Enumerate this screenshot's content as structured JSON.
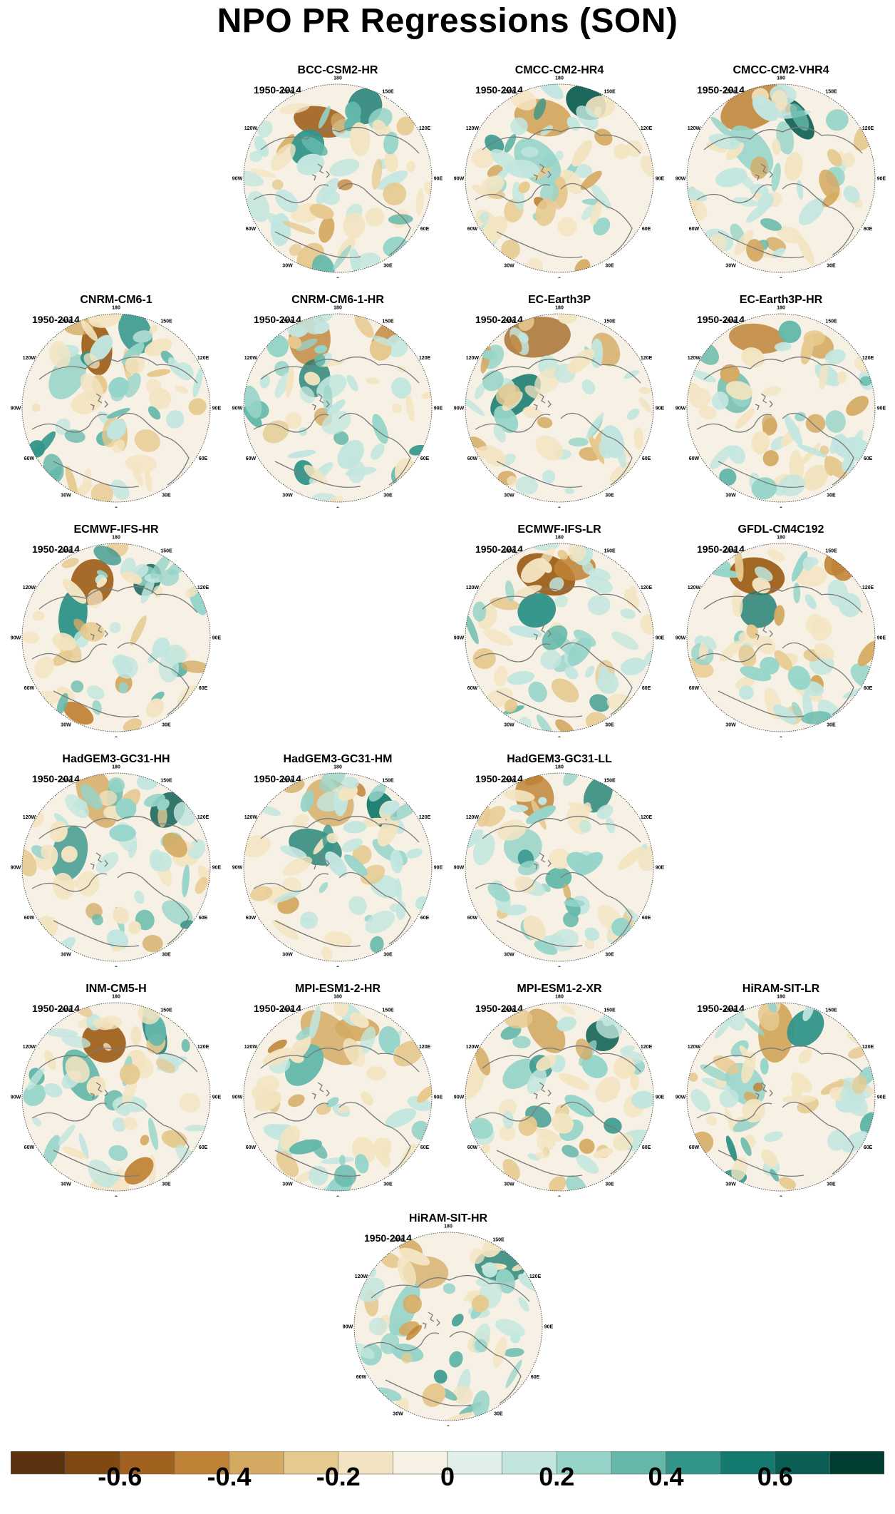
{
  "title": "NPO PR Regressions (SON)",
  "period": "1950-2014",
  "longitude_labels": [
    "180",
    "150E",
    "120E",
    "90E",
    "60E",
    "30E",
    "0",
    "30W",
    "60W",
    "90W",
    "120W",
    "150W"
  ],
  "panels": [
    {
      "model": "BCC-CSM2-HR",
      "row": 0,
      "col": 1
    },
    {
      "model": "CMCC-CM2-HR4",
      "row": 0,
      "col": 2
    },
    {
      "model": "CMCC-CM2-VHR4",
      "row": 0,
      "col": 3
    },
    {
      "model": "CNRM-CM6-1",
      "row": 1,
      "col": 0
    },
    {
      "model": "CNRM-CM6-1-HR",
      "row": 1,
      "col": 1
    },
    {
      "model": "EC-Earth3P",
      "row": 1,
      "col": 2
    },
    {
      "model": "EC-Earth3P-HR",
      "row": 1,
      "col": 3
    },
    {
      "model": "ECMWF-IFS-HR",
      "row": 2,
      "col": 0
    },
    {
      "model": "ECMWF-IFS-LR",
      "row": 2,
      "col": 2
    },
    {
      "model": "GFDL-CM4C192",
      "row": 2,
      "col": 3
    },
    {
      "model": "HadGEM3-GC31-HH",
      "row": 3,
      "col": 0
    },
    {
      "model": "HadGEM3-GC31-HM",
      "row": 3,
      "col": 1
    },
    {
      "model": "HadGEM3-GC31-LL",
      "row": 3,
      "col": 2
    },
    {
      "model": "INM-CM5-H",
      "row": 4,
      "col": 0
    },
    {
      "model": "MPI-ESM1-2-HR",
      "row": 4,
      "col": 1
    },
    {
      "model": "MPI-ESM1-2-XR",
      "row": 4,
      "col": 2
    },
    {
      "model": "HiRAM-SIT-LR",
      "row": 4,
      "col": 3
    },
    {
      "model": "HiRAM-SIT-HR",
      "row": 5,
      "col": 1.5
    }
  ],
  "colorbar": {
    "colors": [
      "#5c3310",
      "#7e4a12",
      "#a0621e",
      "#bf8235",
      "#d4aa63",
      "#e6c98f",
      "#f3e4c1",
      "#f6f1e4",
      "#e1efea",
      "#c2e6df",
      "#96d4c9",
      "#64b8aa",
      "#33958a",
      "#157a6f",
      "#0b5e53",
      "#023d33"
    ],
    "tick_labels": [
      "-0.6",
      "-0.4",
      "-0.2",
      "0",
      "0.2",
      "0.4",
      "0.6"
    ],
    "tick_values": [
      -0.6,
      -0.4,
      -0.2,
      0,
      0.2,
      0.4,
      0.6
    ],
    "min": -0.8,
    "max": 0.8
  }
}
